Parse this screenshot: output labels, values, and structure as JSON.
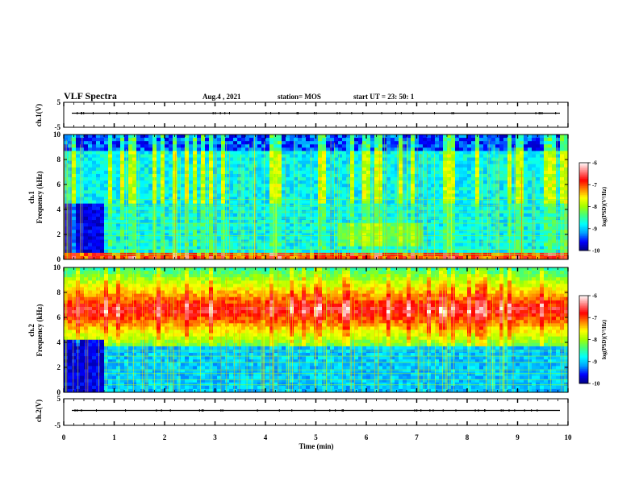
{
  "header": {
    "title": "VLF Spectra",
    "date": "Aug.4  , 2021",
    "station": "station= MOS",
    "start": "start  UT  =   23: 50: 1"
  },
  "chart_data": [
    {
      "type": "line",
      "panel": "ch1_waveform",
      "ylabel": "ch.1(V)",
      "ylim": [
        -5,
        5
      ],
      "yticks": [
        "5",
        "-5"
      ],
      "xlim": [
        0,
        10
      ],
      "baseline_value": 0
    },
    {
      "type": "heatmap",
      "panel": "ch1_spectrogram",
      "ylabel": "ch.1\nFrequency  (kHz)",
      "ylim": [
        0,
        10
      ],
      "yticks": [
        "0",
        "2",
        "4",
        "6",
        "8",
        "10"
      ],
      "xlim": [
        0,
        10
      ],
      "colorbar": {
        "label": "log(PSD)(V²/Hz)",
        "range": [
          -10,
          -6
        ],
        "ticks": [
          "-6",
          "-7",
          "-8",
          "-9",
          "-10"
        ]
      }
    },
    {
      "type": "heatmap",
      "panel": "ch2_spectrogram",
      "ylabel": "ch.2\nFrequency  (kHz)",
      "ylim": [
        0,
        10
      ],
      "yticks": [
        "0",
        "2",
        "4",
        "6",
        "8",
        "10"
      ],
      "xlim": [
        0,
        10
      ],
      "colorbar": {
        "label": "log(PSD)(V²/Hz)",
        "range": [
          -10,
          -6
        ],
        "ticks": [
          "-6",
          "-7",
          "-8",
          "-9",
          "-10"
        ]
      }
    },
    {
      "type": "line",
      "panel": "ch2_waveform",
      "ylabel": "ch.2(V)",
      "ylim": [
        -5,
        5
      ],
      "yticks": [
        "5",
        "-5"
      ],
      "xlim": [
        0,
        10
      ],
      "baseline_value": 0
    }
  ],
  "xaxis": {
    "label": "Time  (min)",
    "ticks": [
      "0",
      "1",
      "2",
      "3",
      "4",
      "5",
      "6",
      "7",
      "8",
      "9",
      "10"
    ]
  },
  "colors": {
    "scale": [
      "#00007f",
      "#0000ff",
      "#00a0ff",
      "#00ffff",
      "#40ff80",
      "#a0ff00",
      "#ffff00",
      "#ff8000",
      "#ff0000",
      "#ff7f7f",
      "#ffffff"
    ],
    "background": "#000000"
  }
}
